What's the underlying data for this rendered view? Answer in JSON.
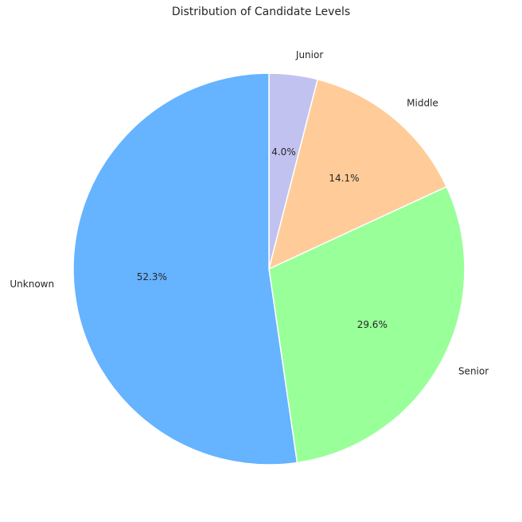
{
  "chart_data": {
    "type": "pie",
    "title": "Distribution of Candidate Levels",
    "categories": [
      "Junior",
      "Middle",
      "Senior",
      "Unknown"
    ],
    "values": [
      4.0,
      14.1,
      29.6,
      52.3
    ],
    "value_labels": [
      "4.0%",
      "14.1%",
      "29.6%",
      "52.3%"
    ],
    "colors": [
      "#c2c2f0",
      "#ffcc99",
      "#99ff99",
      "#66b3ff"
    ],
    "start_angle_deg": 90,
    "direction": "clockwise",
    "legend": "none"
  }
}
